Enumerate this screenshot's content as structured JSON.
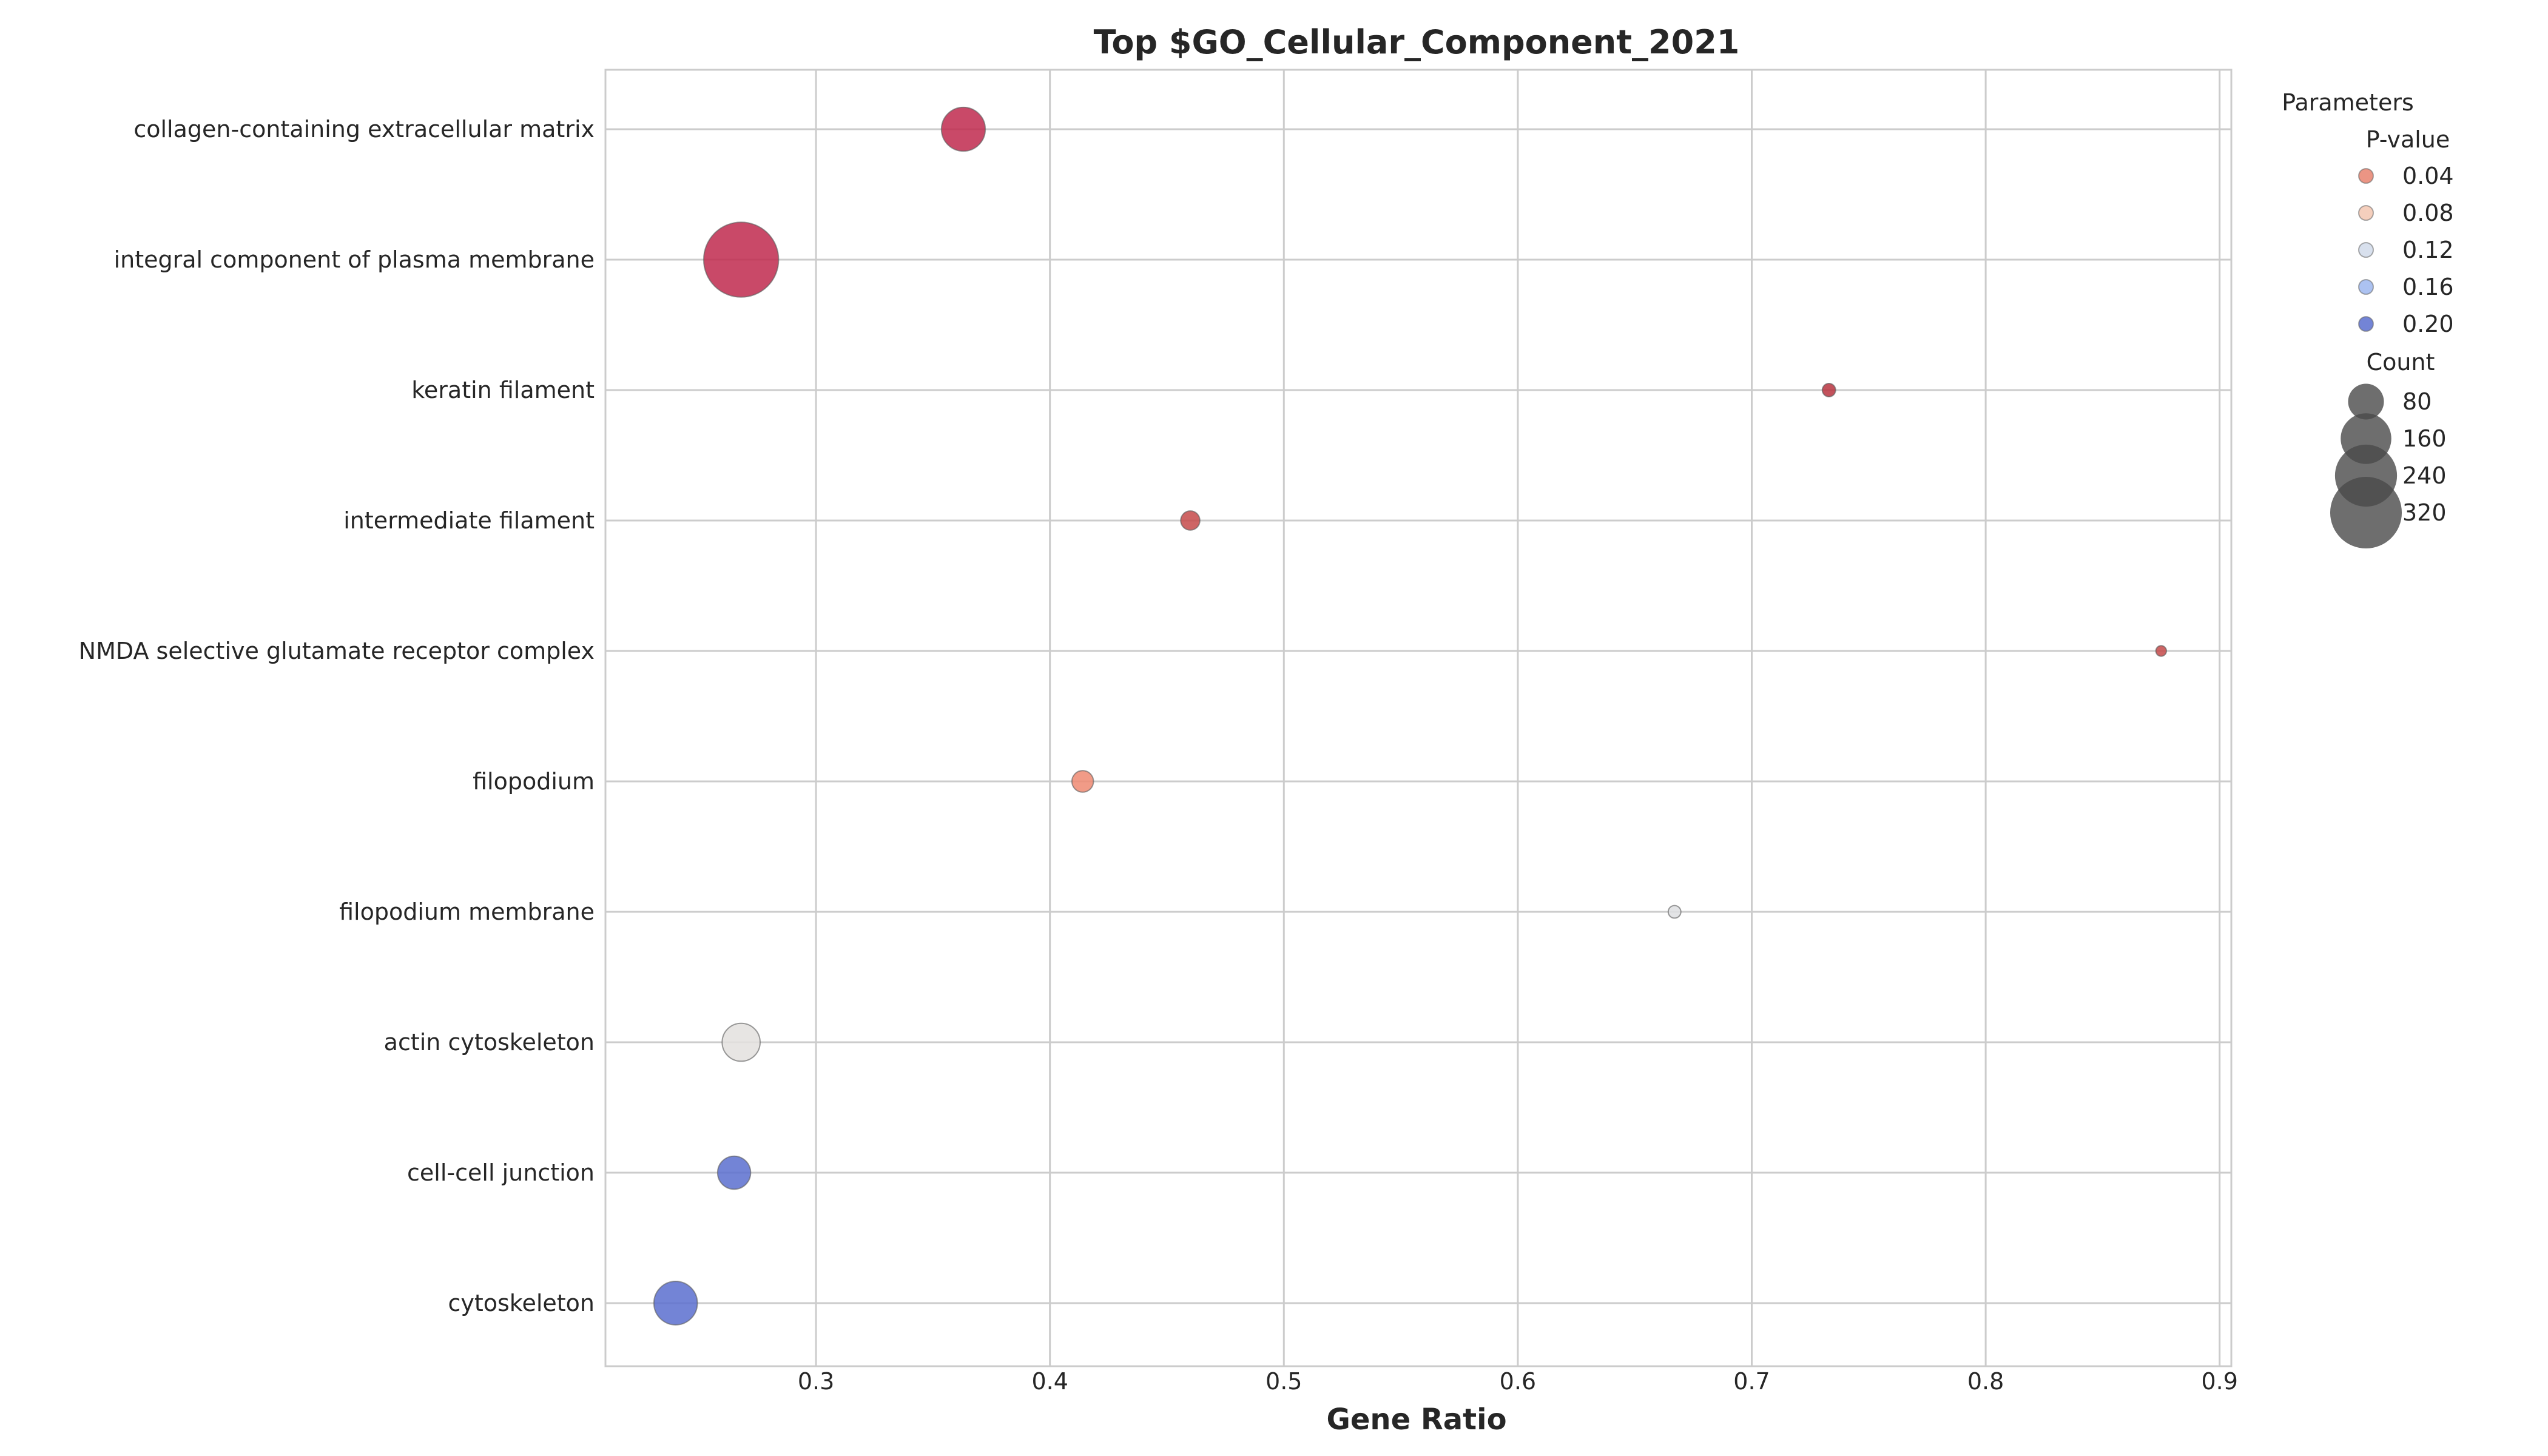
{
  "chart_data": {
    "type": "scatter",
    "title": "Top $GO_Cellular_Component_2021",
    "xlabel": "Gene Ratio",
    "ylabel": "",
    "xlim": [
      0.21,
      0.905
    ],
    "xticks": [
      "0.3",
      "0.4",
      "0.5",
      "0.6",
      "0.7",
      "0.8",
      "0.9"
    ],
    "xtick_values": [
      0.3,
      0.4,
      0.5,
      0.6,
      0.7,
      0.8,
      0.9
    ],
    "grid": true,
    "categories": [
      "collagen-containing extracellular matrix",
      "integral component of plasma membrane",
      "keratin filament",
      "intermediate filament",
      "NMDA selective glutamate receptor complex",
      "filopodium",
      "filopodium membrane",
      "actin cytoskeleton",
      "cell-cell junction",
      "cytoskeleton"
    ],
    "points": [
      {
        "term": "collagen-containing extracellular matrix",
        "gene_ratio": 0.363,
        "pvalue": 0.005,
        "count": 120,
        "color": "#c0294d"
      },
      {
        "term": "integral component of plasma membrane",
        "gene_ratio": 0.268,
        "pvalue": 0.006,
        "count": 350,
        "color": "#c0294d"
      },
      {
        "term": "keratin filament",
        "gene_ratio": 0.733,
        "pvalue": 0.01,
        "count": 11,
        "color": "#b9343f"
      },
      {
        "term": "intermediate filament",
        "gene_ratio": 0.46,
        "pvalue": 0.02,
        "count": 23,
        "color": "#c64a4a"
      },
      {
        "term": "NMDA selective glutamate receptor complex",
        "gene_ratio": 0.875,
        "pvalue": 0.02,
        "count": 7,
        "color": "#c64a4a"
      },
      {
        "term": "filopodium",
        "gene_ratio": 0.414,
        "pvalue": 0.05,
        "count": 29,
        "color": "#ee8a72"
      },
      {
        "term": "filopodium membrane",
        "gene_ratio": 0.667,
        "pvalue": 0.11,
        "count": 10,
        "color": "#dedfe2"
      },
      {
        "term": "actin cytoskeleton",
        "gene_ratio": 0.268,
        "pvalue": 0.11,
        "count": 90,
        "color": "#e3e1de"
      },
      {
        "term": "cell-cell junction",
        "gene_ratio": 0.265,
        "pvalue": 0.21,
        "count": 68,
        "color": "#5a6fcf"
      },
      {
        "term": "cytoskeleton",
        "gene_ratio": 0.24,
        "pvalue": 0.21,
        "count": 118,
        "color": "#5a6fcf"
      }
    ],
    "legend": {
      "position": "upper-right-outside",
      "title": "Parameters",
      "color_title": "P-value",
      "color_entries": [
        {
          "label": "0.04",
          "color": "#e8836f"
        },
        {
          "label": "0.08",
          "color": "#f3c7b1"
        },
        {
          "label": "0.12",
          "color": "#d1daea"
        },
        {
          "label": "0.16",
          "color": "#9eb7ee"
        },
        {
          "label": "0.20",
          "color": "#5a6fcf"
        }
      ],
      "size_title": "Count",
      "size_entries": [
        {
          "label": "80",
          "count": 80
        },
        {
          "label": "160",
          "count": 160
        },
        {
          "label": "240",
          "count": 240
        },
        {
          "label": "320",
          "count": 320
        }
      ],
      "size_color": "#4a4a4a"
    }
  }
}
